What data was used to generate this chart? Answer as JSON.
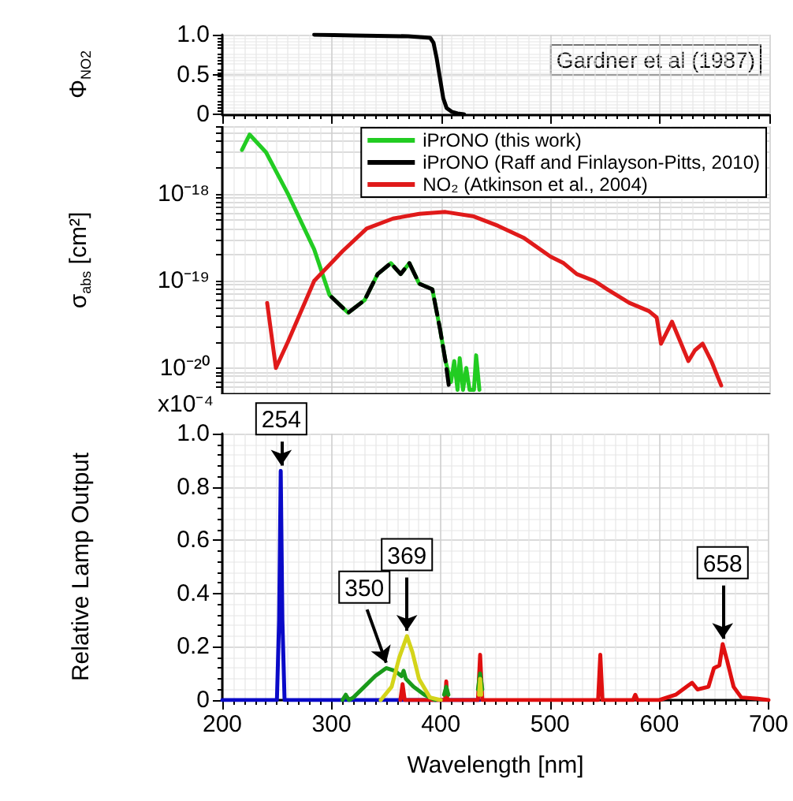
{
  "chart_data": [
    {
      "type": "line",
      "ylabel": "Φ$_{NO2}$",
      "xlim": [
        200,
        700
      ],
      "xticks": [
        200,
        300,
        400,
        500,
        600,
        700
      ],
      "ylim": [
        0,
        1
      ],
      "yticks": [
        0,
        {
          "value": 0.5,
          "label": "0.5"
        },
        {
          "value": 1,
          "label": "1.0"
        }
      ],
      "tick_labels": "y",
      "grid": true,
      "legend": false,
      "marker": "none",
      "annotations": [
        "Gardner et al (1987)"
      ],
      "series": [
        {
          "color": "#000000",
          "x": [
            284,
            320,
            370,
            390,
            393,
            396,
            399,
            402,
            405,
            410,
            415,
            421
          ],
          "values": [
            1.0,
            0.99,
            0.98,
            0.96,
            0.9,
            0.7,
            0.45,
            0.2,
            0.08,
            0.03,
            0.01,
            0
          ]
        }
      ]
    },
    {
      "type": "line",
      "ylabel": "σ$_{abs}$ [cm²]",
      "xlim": [
        200,
        700
      ],
      "xticks": [
        200,
        300,
        400,
        500,
        600,
        700
      ],
      "ylim": [
        5e-21,
        6e-18
      ],
      "yticks": [
        {
          "value": 1e-20,
          "label": "10⁻²⁰"
        },
        {
          "value": 1e-19,
          "label": "10⁻¹⁹"
        },
        {
          "value": 1e-18,
          "label": "10⁻¹⁸"
        }
      ],
      "log": "y",
      "tick_labels": "y",
      "grid": true,
      "legend": "top right",
      "marker": "none",
      "series": [
        {
          "name": "iPrONO (this work)",
          "color": "#22cc22",
          "line_style": "solid",
          "x": [
            218,
            225,
            240,
            260,
            284,
            298,
            315,
            330,
            342,
            354,
            363,
            371,
            380,
            392,
            399,
            404,
            409,
            412,
            415,
            417,
            420,
            423,
            426,
            430,
            432,
            435
          ],
          "values": [
            3.2e-18,
            4.8e-18,
            3e-18,
            1e-18,
            2.3e-19,
            6.9e-20,
            4.3e-20,
            6e-20,
            1.2e-19,
            1.6e-19,
            1.2e-19,
            1.6e-19,
            9.3e-20,
            8e-20,
            2.8e-20,
            1.2e-20,
            6.9e-21,
            1.2e-20,
            5.6e-21,
            1.3e-20,
            5.6e-21,
            1e-20,
            5.6e-21,
            5.6e-21,
            1.4e-20,
            5.6e-21
          ]
        },
        {
          "name": "iPrONO (Raff and Finlayson-Pitts, 2010)",
          "color": "#000000",
          "line_style": "dashed",
          "x": [
            300,
            315,
            330,
            342,
            354,
            363,
            371,
            380,
            392,
            399,
            404,
            407
          ],
          "values": [
            6.5e-20,
            4.3e-20,
            6e-20,
            1.2e-19,
            1.6e-19,
            1.2e-19,
            1.6e-19,
            9.3e-20,
            8e-20,
            2.8e-20,
            1.2e-20,
            6.3e-21
          ]
        },
        {
          "name": "NO₂ (Atkinson et al., 2004)",
          "color": "#e01a1a",
          "line_style": "solid",
          "x": [
            241,
            249,
            260,
            284,
            310,
            332,
            356,
            380,
            404,
            430,
            452,
            476,
            500,
            512,
            524,
            540,
            552,
            572,
            590,
            597,
            601,
            611,
            626,
            632,
            639,
            647,
            656
          ],
          "values": [
            5.6e-20,
            1e-20,
            2e-20,
            1e-19,
            2.2e-19,
            4e-19,
            5.2e-19,
            5.9e-19,
            6.2e-19,
            5.5e-19,
            4.3e-19,
            3.1e-19,
            1.9e-19,
            1.6e-19,
            1.2e-19,
            1e-19,
            8e-20,
            5.6e-20,
            4.5e-20,
            3.8e-20,
            1.9e-20,
            3.4e-20,
            1.2e-20,
            1.6e-20,
            1.9e-20,
            1.2e-20,
            6.3e-21
          ]
        }
      ]
    },
    {
      "type": "line",
      "xlabel": "Wavelength [nm]",
      "ylabel": "Relative Lamp Output",
      "xlim": [
        200,
        700
      ],
      "xticks": [
        200,
        300,
        400,
        500,
        600,
        700
      ],
      "ylim": [
        0,
        1
      ],
      "yticks": [
        0,
        {
          "value": 0.2,
          "label": "0.2"
        },
        {
          "value": 0.4,
          "label": "0.4"
        },
        {
          "value": 0.6,
          "label": "0.6"
        },
        {
          "value": 0.8,
          "label": "0.8"
        },
        {
          "value": 1,
          "label": "1.0"
        }
      ],
      "grid": true,
      "legend": false,
      "marker": "none",
      "annotations": [
        "x10⁻⁴",
        {
          "text": "254",
          "x": 254,
          "y": 0.86
        },
        {
          "text": "350",
          "x": 350,
          "y": 0.12
        },
        {
          "text": "369",
          "x": 369,
          "y": 0.24
        },
        {
          "text": "658",
          "x": 658,
          "y": 0.21
        }
      ],
      "series": [
        {
          "color": "#0a0ac8",
          "x": [
            200,
            250,
            252,
            253.5,
            255,
            257,
            435
          ],
          "values": [
            0,
            0,
            0.3,
            0.86,
            0.3,
            0,
            0
          ]
        },
        {
          "color": "#e01010",
          "x": [
            363,
            365,
            367,
            404,
            405,
            406,
            434,
            436,
            438,
            544,
            546,
            548,
            576,
            578,
            580,
            600,
            615,
            625,
            630,
            635,
            645,
            650,
            655,
            658,
            662,
            668,
            675,
            690,
            700
          ],
          "values": [
            0,
            0.06,
            0,
            0,
            0.07,
            0,
            0,
            0.17,
            0,
            0,
            0.17,
            0,
            0,
            0.02,
            0,
            0,
            0.02,
            0.05,
            0.065,
            0.04,
            0.05,
            0.12,
            0.13,
            0.21,
            0.15,
            0.05,
            0.01,
            0.005,
            0
          ]
        },
        {
          "color": "#1a9a1a",
          "x": [
            310,
            313,
            316,
            320,
            330,
            340,
            350,
            358,
            364,
            366,
            368,
            375,
            385,
            395,
            400,
            403,
            405,
            407,
            420,
            434,
            436,
            438
          ],
          "values": [
            0,
            0.02,
            0,
            0.01,
            0.05,
            0.09,
            0.12,
            0.11,
            0.09,
            0.11,
            0.08,
            0.05,
            0.02,
            0,
            null,
            0.02,
            0.05,
            0.02,
            null,
            0.04,
            0.1,
            0.04
          ]
        },
        {
          "color": "#d4d41a",
          "x": [
            345,
            355,
            362,
            369,
            374,
            380,
            390,
            400,
            420,
            435,
            436,
            437
          ],
          "values": [
            0,
            0.05,
            0.16,
            0.24,
            0.18,
            0.08,
            0.01,
            0,
            null,
            0.02,
            0.08,
            0.02
          ]
        }
      ]
    }
  ]
}
